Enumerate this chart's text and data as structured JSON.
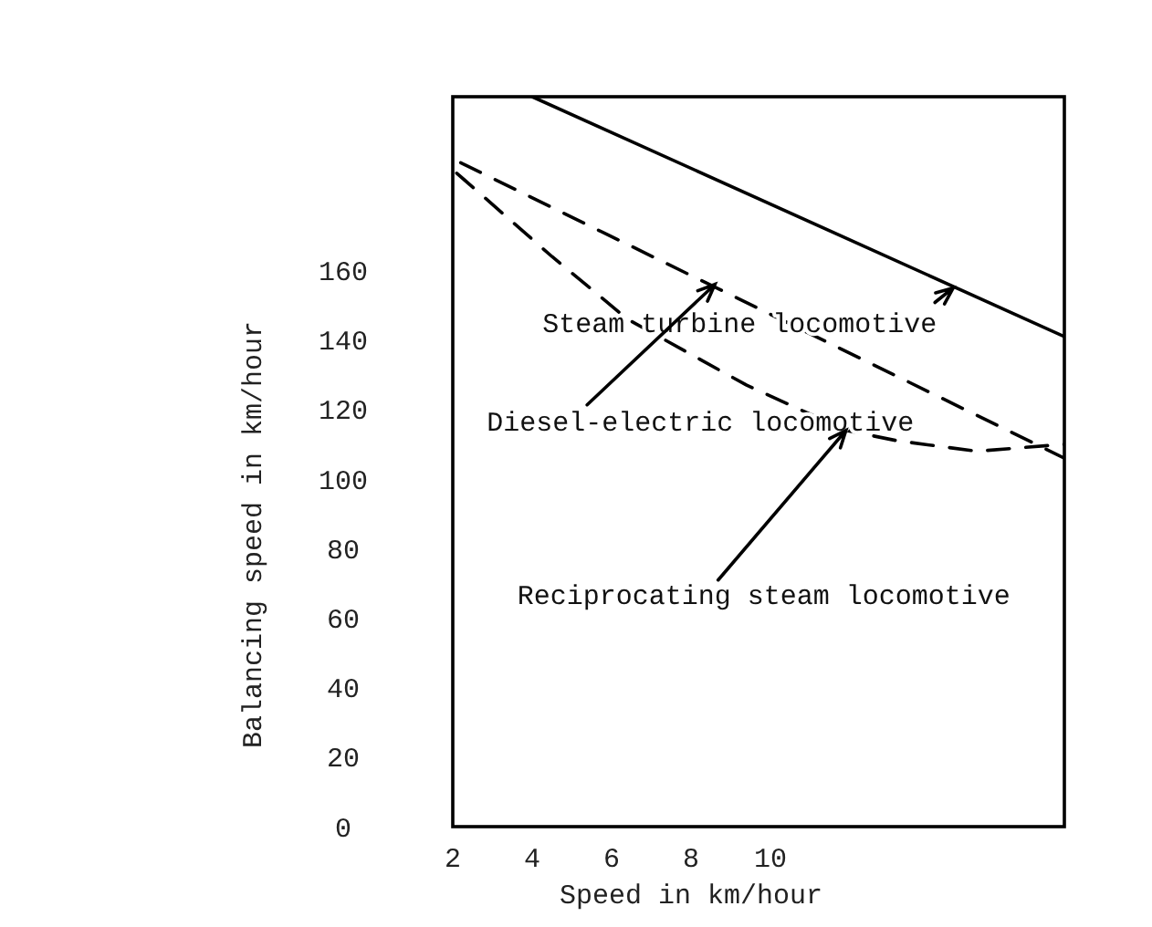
{
  "chart_data": {
    "type": "line",
    "xlabel": "Speed in km/hour",
    "ylabel": "Balancing speed in km/hour",
    "xlim": [
      2,
      17.4
    ],
    "ylim": [
      0,
      210
    ],
    "xticks": [
      2,
      4,
      6,
      8,
      10
    ],
    "yticks": [
      0,
      20,
      40,
      60,
      80,
      100,
      120,
      140,
      160
    ],
    "series": [
      {
        "color": "#000000",
        "line_style": "solid",
        "x": [
          4.0,
          17.4
        ],
        "values": [
          210,
          141
        ]
      },
      {
        "color": "#000000",
        "line_style": "dashed",
        "x": [
          2.2,
          17.4
        ],
        "values": [
          191,
          106
        ]
      },
      {
        "color": "#000000",
        "line_style": "dashed",
        "x": [
          2.1,
          4.5,
          6.4,
          9.4,
          11.9,
          13.2,
          15.2,
          17.4
        ],
        "values": [
          188,
          164,
          146,
          127,
          114,
          111,
          108,
          110
        ]
      }
    ],
    "annotations": [
      {
        "text": "Steam turbine locomotive",
        "x": 14.6,
        "y": 155
      },
      {
        "text": "Diesel-electric locomotive",
        "x": 8.6,
        "y": 156
      },
      {
        "text": "Reciprocating steam locomotive",
        "x": 11.9,
        "y": 114
      }
    ],
    "marker": "none"
  }
}
